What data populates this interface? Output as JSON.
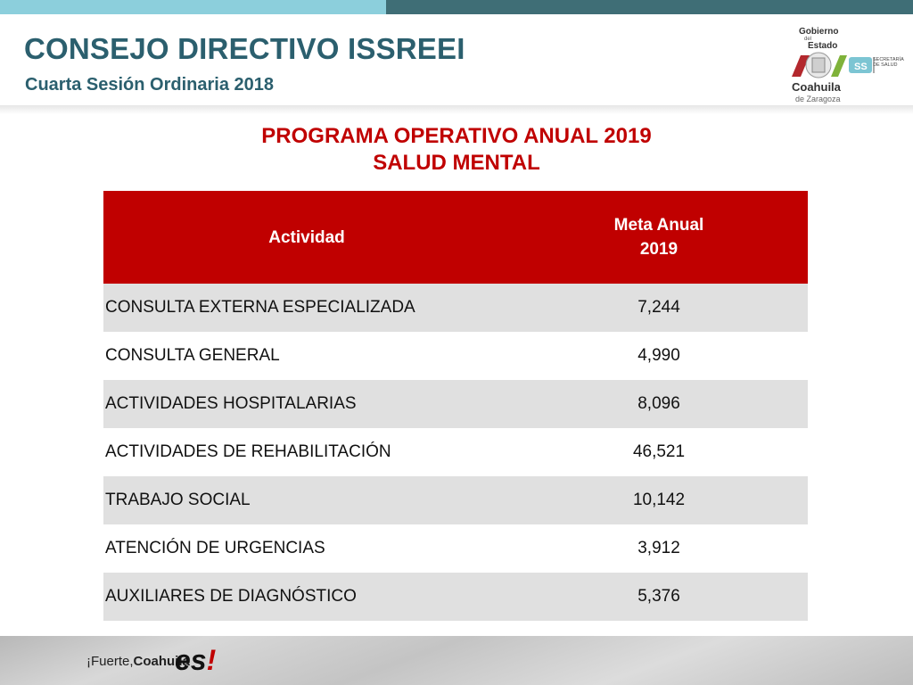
{
  "header": {
    "title": "CONSEJO DIRECTIVO ISSREEI",
    "subtitle": "Cuarta Sesión Ordinaria 2018"
  },
  "logo": {
    "gobierno": "Gobierno",
    "del": "del",
    "estado": "Estado",
    "state": "Coahuila",
    "zaragoza": "de Zaragoza",
    "ss": "SS",
    "secretaria": "SECRETARÍA DE SALUD"
  },
  "report": {
    "title_line1": "PROGRAMA OPERATIVO ANUAL 2019",
    "title_line2": "SALUD MENTAL"
  },
  "table": {
    "headers": {
      "actividad": "Actividad",
      "meta_line1": "Meta Anual",
      "meta_line2": "2019"
    },
    "rows": [
      {
        "actividad": "CONSULTA EXTERNA ESPECIALIZADA",
        "meta": "7,244"
      },
      {
        "actividad": "CONSULTA GENERAL",
        "meta": "4,990"
      },
      {
        "actividad": "ACTIVIDADES HOSPITALARIAS",
        "meta": "8,096"
      },
      {
        "actividad": "ACTIVIDADES DE REHABILITACIÓN",
        "meta": "46,521"
      },
      {
        "actividad": "TRABAJO SOCIAL",
        "meta": "10,142"
      },
      {
        "actividad": "ATENCIÓN DE URGENCIAS",
        "meta": "3,912"
      },
      {
        "actividad": "AUXILIARES DE DIAGNÓSTICO",
        "meta": "5,376"
      }
    ]
  },
  "footer": {
    "slogan_prefix": "¡Fuerte,",
    "slogan_state": "Coahuila",
    "slogan_es": "es",
    "slogan_excl": "!"
  },
  "colors": {
    "accent_red": "#c00000",
    "title_teal": "#2b5f6e",
    "bar_light": "#8ccfdc",
    "bar_dark": "#3f6e76"
  }
}
